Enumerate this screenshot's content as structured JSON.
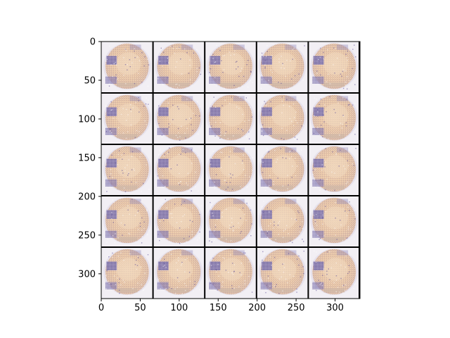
{
  "figure": {
    "type": "image-grid",
    "grid": {
      "rows": 5,
      "cols": 5
    },
    "separator_color": "#000000",
    "image_palette": {
      "background": "#f2eff4",
      "skin": "#e6c3a2",
      "skin_light": "#f0d7bc",
      "shade": "#cfb8a6",
      "purple": "#5b4d97",
      "purple_light": "#8a80b8"
    }
  },
  "axes": {
    "x_ticks": [
      {
        "value": 0,
        "label": "0"
      },
      {
        "value": 50,
        "label": "50"
      },
      {
        "value": 100,
        "label": "100"
      },
      {
        "value": 150,
        "label": "150"
      },
      {
        "value": 200,
        "label": "200"
      },
      {
        "value": 250,
        "label": "250"
      },
      {
        "value": 300,
        "label": "300"
      }
    ],
    "y_ticks": [
      {
        "value": 0,
        "label": "0"
      },
      {
        "value": 50,
        "label": "50"
      },
      {
        "value": 100,
        "label": "100"
      },
      {
        "value": 150,
        "label": "150"
      },
      {
        "value": 200,
        "label": "200"
      },
      {
        "value": 250,
        "label": "250"
      },
      {
        "value": 300,
        "label": "300"
      }
    ],
    "x_range": [
      0,
      332
    ],
    "y_range": [
      332,
      0
    ],
    "tick_color": "#000000"
  }
}
